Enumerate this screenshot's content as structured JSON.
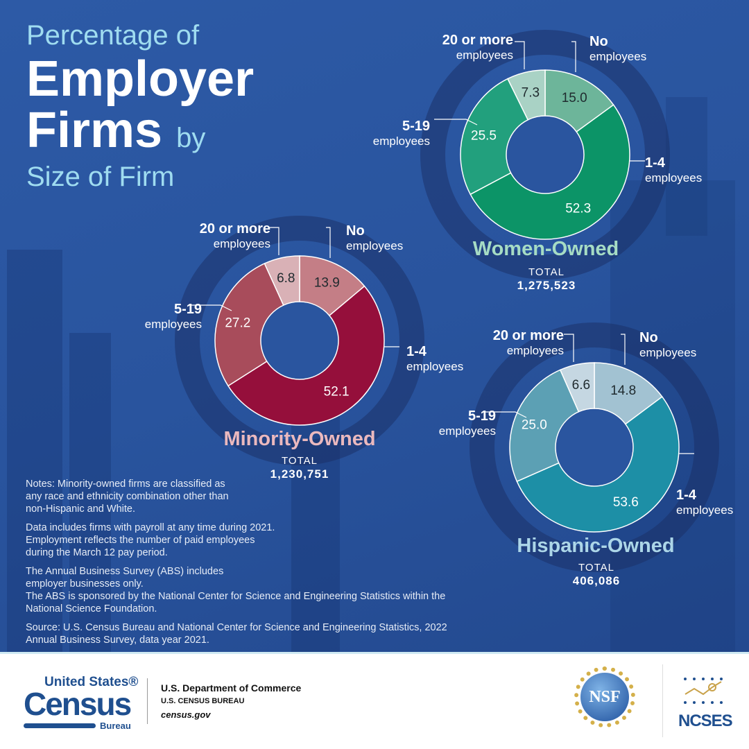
{
  "title": {
    "line1": "Percentage of",
    "line2": "Employer",
    "line3": "Firms",
    "line3b": "by",
    "line4": "Size of Firm"
  },
  "chart_data": [
    {
      "type": "pie",
      "variant": "donut",
      "name": "Women-Owned",
      "total_label": "TOTAL",
      "total": "1,275,523",
      "categories": [
        "No employees",
        "1-4 employees",
        "5-19 employees",
        "20 or more employees"
      ],
      "values": [
        15.0,
        52.3,
        25.5,
        7.3
      ],
      "colors": [
        "#6db59a",
        "#0c9467",
        "#22a07d",
        "#a9d2c5"
      ],
      "title_color": "#a6dcc4"
    },
    {
      "type": "pie",
      "variant": "donut",
      "name": "Minority-Owned",
      "total_label": "TOTAL",
      "total": "1,230,751",
      "categories": [
        "No employees",
        "1-4 employees",
        "5-19 employees",
        "20 or more employees"
      ],
      "values": [
        13.9,
        52.1,
        27.2,
        6.8
      ],
      "colors": [
        "#c47e86",
        "#950f3b",
        "#a84c5b",
        "#d9b1b6"
      ],
      "title_color": "#ebb9be"
    },
    {
      "type": "pie",
      "variant": "donut",
      "name": "Hispanic-Owned",
      "total_label": "TOTAL",
      "total": "406,086",
      "categories": [
        "No employees",
        "1-4 employees",
        "5-19 employees",
        "20 or more employees"
      ],
      "values": [
        14.8,
        53.6,
        25.0,
        6.6
      ],
      "colors": [
        "#a2c2d2",
        "#1d8fa6",
        "#5ca0b4",
        "#c5d7e2"
      ],
      "title_color": "#acd6e8"
    }
  ],
  "labels": {
    "none_b": "No",
    "none": "employees",
    "small_b": "1-4",
    "small": "employees",
    "mid_b": "5-19",
    "mid": "employees",
    "large_b": "20 or more",
    "large": "employees"
  },
  "notes": [
    "Notes: Minority-owned firms are classified as any race and ethnicity combination other than non-Hispanic and White.",
    "Data includes firms with payroll at any time during 2021. Employment reflects the number of paid employees during the March 12 pay period.",
    "The Annual Business Survey (ABS) includes employer businesses only.",
    "The ABS is sponsored by the National Center for Science and Engineering Statistics within the National Science Foundation.",
    "Source: U.S. Census Bureau and National Center for Science and Engineering Statistics, 2022 Annual Business Survey, data year 2021."
  ],
  "footer": {
    "census_top": "United States®",
    "census_mid": "Census",
    "census_bot": "Bureau",
    "dept": "U.S. Department of Commerce",
    "bureau": "U.S. CENSUS BUREAU",
    "site": "census.gov",
    "nsf": "NSF",
    "ncses": "NCSES"
  }
}
